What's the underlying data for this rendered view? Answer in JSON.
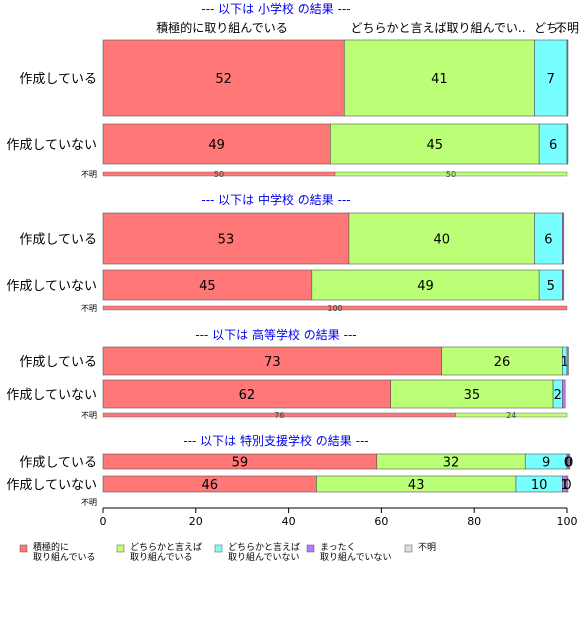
{
  "chart_data": {
    "type": "bar",
    "orientation": "horizontal",
    "stacked": true,
    "xlim": [
      0,
      100
    ],
    "xticks": [
      "0",
      "20",
      "40",
      "60",
      "80",
      "100"
    ],
    "top_labels": [
      "積極的に取り組んでいる",
      "どちらかと言えば取り組んでい..",
      "どち..",
      "不明"
    ],
    "colors": {
      "積極的に取り組んでいる": "#ff7777",
      "どちらかと言えば取り組んでいる": "#bbff77",
      "どちらかと言えば取り組んでいない": "#77ffff",
      "まったく取り組んでいない": "#bb77ff",
      "不明": "#dddddd"
    },
    "legend": [
      {
        "line1": "積極的に",
        "line2": "取り組んでいる",
        "color": "#ff7777"
      },
      {
        "line1": "どちらかと言えば",
        "line2": "取り組んでいる",
        "color": "#bbff77"
      },
      {
        "line1": "どちらかと言えば",
        "line2": "取り組んでいない",
        "color": "#77ffff"
      },
      {
        "line1": "まったく",
        "line2": "取り組んでいない",
        "color": "#bb77ff"
      },
      {
        "line1": "不明",
        "line2": "",
        "color": "#dddddd"
      }
    ],
    "panels": [
      {
        "title": "--- 以下は 小学校 の結果 ---",
        "rows": [
          {
            "label": "作成している",
            "values": [
              52,
              41,
              7,
              0.2,
              0
            ],
            "labels": [
              "52",
              "41",
              "7",
              "",
              ""
            ]
          },
          {
            "label": "作成していない",
            "values": [
              49,
              45,
              6,
              0.2,
              0
            ],
            "labels": [
              "49",
              "45",
              "6",
              "",
              ""
            ]
          },
          {
            "label": "不明",
            "values": [
              50,
              50,
              0,
              0,
              0
            ],
            "labels": [
              "50",
              "50",
              "",
              "",
              ""
            ],
            "thin": true
          }
        ]
      },
      {
        "title": "--- 以下は 中学校 の結果 ---",
        "rows": [
          {
            "label": "作成している",
            "values": [
              53,
              40,
              6,
              0.3,
              0
            ],
            "labels": [
              "53",
              "40",
              "6",
              "",
              ""
            ]
          },
          {
            "label": "作成していない",
            "values": [
              45,
              49,
              5,
              0.3,
              0
            ],
            "labels": [
              "45",
              "49",
              "5",
              "",
              ""
            ]
          },
          {
            "label": "不明",
            "values": [
              100,
              0,
              0,
              0,
              0
            ],
            "labels": [
              "100",
              "",
              "",
              "",
              ""
            ],
            "thin": true
          }
        ]
      },
      {
        "title": "--- 以下は 高等学校 の結果 ---",
        "rows": [
          {
            "label": "作成している",
            "values": [
              73,
              26,
              1,
              0.3,
              0
            ],
            "labels": [
              "73",
              "26",
              "1",
              "",
              ""
            ]
          },
          {
            "label": "作成していない",
            "values": [
              62,
              35,
              2,
              0.6,
              0
            ],
            "labels": [
              "62",
              "35",
              "2",
              "",
              ""
            ]
          },
          {
            "label": "不明",
            "values": [
              76,
              24,
              0,
              0,
              0
            ],
            "labels": [
              "76",
              "24",
              "",
              "",
              ""
            ],
            "thin": true
          }
        ]
      },
      {
        "title": "--- 以下は 特別支援学校 の結果 ---",
        "rows": [
          {
            "label": "作成している",
            "values": [
              59,
              32,
              9,
              0.4,
              0.2
            ],
            "labels": [
              "59",
              "32",
              "9",
              "0",
              "0"
            ]
          },
          {
            "label": "作成していない",
            "values": [
              46,
              43,
              10,
              1,
              0.2
            ],
            "labels": [
              "46",
              "43",
              "10",
              "1",
              "0"
            ]
          },
          {
            "label": "不明",
            "values": [
              0,
              0,
              0,
              0,
              0
            ],
            "labels": [
              "",
              "",
              "",
              "",
              ""
            ],
            "thin": true
          }
        ]
      }
    ]
  }
}
